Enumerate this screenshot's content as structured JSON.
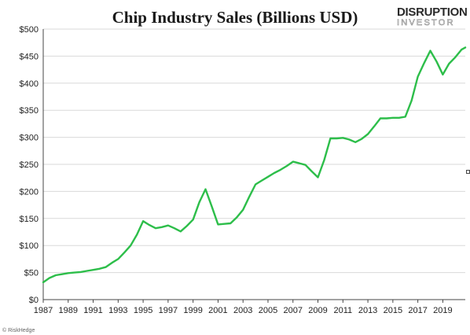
{
  "logo": {
    "line1": "DISRUPTION",
    "line2": "INVESTOR",
    "accent": "#2db84b"
  },
  "credit": "© RiskHedge",
  "chart_data": {
    "type": "line",
    "title": "Chip Industry Sales (Billions USD)",
    "xlabel": "",
    "ylabel": "",
    "x_tick_labels": [
      "1987",
      "1989",
      "1991",
      "1993",
      "1995",
      "1997",
      "1999",
      "2001",
      "2003",
      "2005",
      "2007",
      "2009",
      "2011",
      "2013",
      "2015",
      "2017",
      "2019"
    ],
    "y_tick_labels": [
      "$0",
      "$50",
      "$100",
      "$150",
      "$200",
      "$250",
      "$300",
      "$350",
      "$400",
      "$450",
      "$500"
    ],
    "ylim": [
      0,
      500
    ],
    "xlim": [
      1987,
      2020.8
    ],
    "grid": true,
    "line_color": "#2dbe4a",
    "series": [
      {
        "x": [
          1987,
          1987.5,
          1988,
          1988.5,
          1989,
          1989.5,
          1990,
          1990.5,
          1991,
          1991.5,
          1992,
          1992.5,
          1993,
          1993.5,
          1994,
          1994.5,
          1995,
          1995.5,
          1996,
          1996.5,
          1997,
          1997.5,
          1998,
          1998.5,
          1999,
          1999.5,
          2000,
          2000.5,
          2001,
          2001.5,
          2002,
          2002.5,
          2003,
          2003.5,
          2004,
          2004.5,
          2005,
          2005.5,
          2006,
          2006.5,
          2007,
          2007.5,
          2008,
          2008.5,
          2009,
          2009.5,
          2010,
          2010.5,
          2011,
          2011.5,
          2012,
          2012.5,
          2013,
          2013.5,
          2014,
          2014.5,
          2015,
          2015.5,
          2016,
          2016.5,
          2017,
          2017.5,
          2018,
          2018.5,
          2019,
          2019.5,
          2020,
          2020.5,
          2020.8
        ],
        "y": [
          32,
          40,
          45,
          47,
          49,
          50,
          51,
          53,
          55,
          57,
          60,
          68,
          75,
          87,
          100,
          120,
          145,
          138,
          132,
          134,
          137,
          132,
          126,
          136,
          148,
          180,
          204,
          172,
          139,
          140,
          141,
          152,
          166,
          190,
          213,
          220,
          227,
          234,
          240,
          247,
          255,
          252,
          249,
          237,
          226,
          258,
          298,
          298,
          299,
          296,
          291,
          297,
          306,
          320,
          335,
          335,
          336,
          336,
          338,
          368,
          412,
          437,
          460,
          440,
          416,
          436,
          448,
          462,
          466
        ]
      }
    ]
  }
}
